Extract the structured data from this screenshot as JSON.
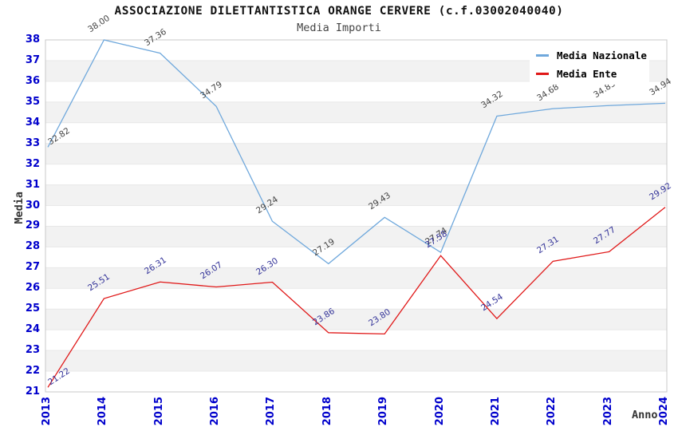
{
  "title": "ASSOCIAZIONE DILETTANTISTICA ORANGE CERVERE (c.f.03002040040)",
  "subtitle": "Media Importi",
  "chart_data": {
    "type": "line",
    "categories": [
      "2013",
      "2014",
      "2015",
      "2016",
      "2017",
      "2018",
      "2019",
      "2020",
      "2021",
      "2022",
      "2023",
      "2024"
    ],
    "series": [
      {
        "name": "Media Nazionale",
        "color": "#6FA8DC",
        "label_color": "#444444",
        "values": [
          32.82,
          38.0,
          37.36,
          34.79,
          29.24,
          27.19,
          29.43,
          27.74,
          34.32,
          34.68,
          34.83,
          34.94
        ]
      },
      {
        "name": "Media Ente",
        "color": "#E01818",
        "label_color": "#333399",
        "values": [
          21.22,
          25.51,
          26.31,
          26.07,
          26.3,
          23.86,
          23.8,
          27.58,
          24.54,
          27.31,
          27.77,
          29.92
        ]
      }
    ],
    "xlabel": "Anno",
    "ylabel": "Media",
    "ylim": [
      21,
      38
    ],
    "ytick_step": 1,
    "value_decimals": 2,
    "legend_position": "top-right",
    "grid": "alternating-horizontal-bands"
  },
  "colors": {
    "tick_label": "#0000CC",
    "band_gray": "#F2F2F2",
    "gridline": "#E8E8E8",
    "plot_border": "#C8C8C8",
    "background": "#FFFFFF"
  }
}
